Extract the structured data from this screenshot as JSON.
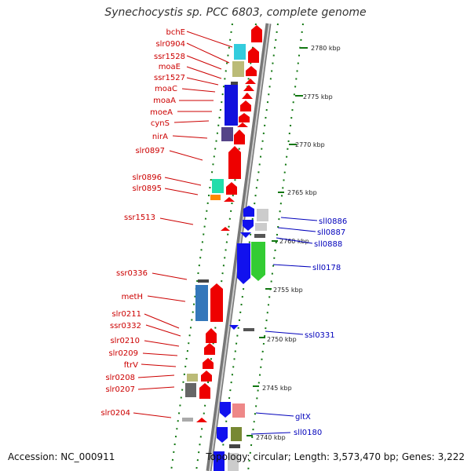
{
  "title": "Synechocystis sp. PCC 6803, complete genome",
  "accession": "Accession: NC_000911",
  "summary": "Topology: circular; Length: 3,573,470 bp; Genes: 3,222",
  "colors": {
    "left_label": "#cc0000",
    "right_label": "#0000bb",
    "backbone": "#999999",
    "tick": "#117711"
  },
  "kbp_ticks": [
    "2780 kbp",
    "2775 kbp",
    "2770 kbp",
    "2765 kbp",
    "2760 kbp",
    "2755 kbp",
    "2750 kbp",
    "2745 kbp",
    "2740 kbp"
  ],
  "left_genes": [
    "bchE",
    "slr0904",
    "ssr1528",
    "moaE",
    "ssr1527",
    "moaC",
    "moaA",
    "moeA",
    "cynS",
    "nirA",
    "slr0897",
    "slr0896",
    "slr0895",
    "ssr1513",
    "ssr0336",
    "metH",
    "slr0211",
    "ssr0332",
    "slr0210",
    "slr0209",
    "ftrV",
    "slr0208",
    "slr0207",
    "slr0204"
  ],
  "right_genes": [
    "sll0886",
    "sll0887",
    "sll0888",
    "sll0178",
    "ssl0331",
    "gltX",
    "sll0180"
  ]
}
